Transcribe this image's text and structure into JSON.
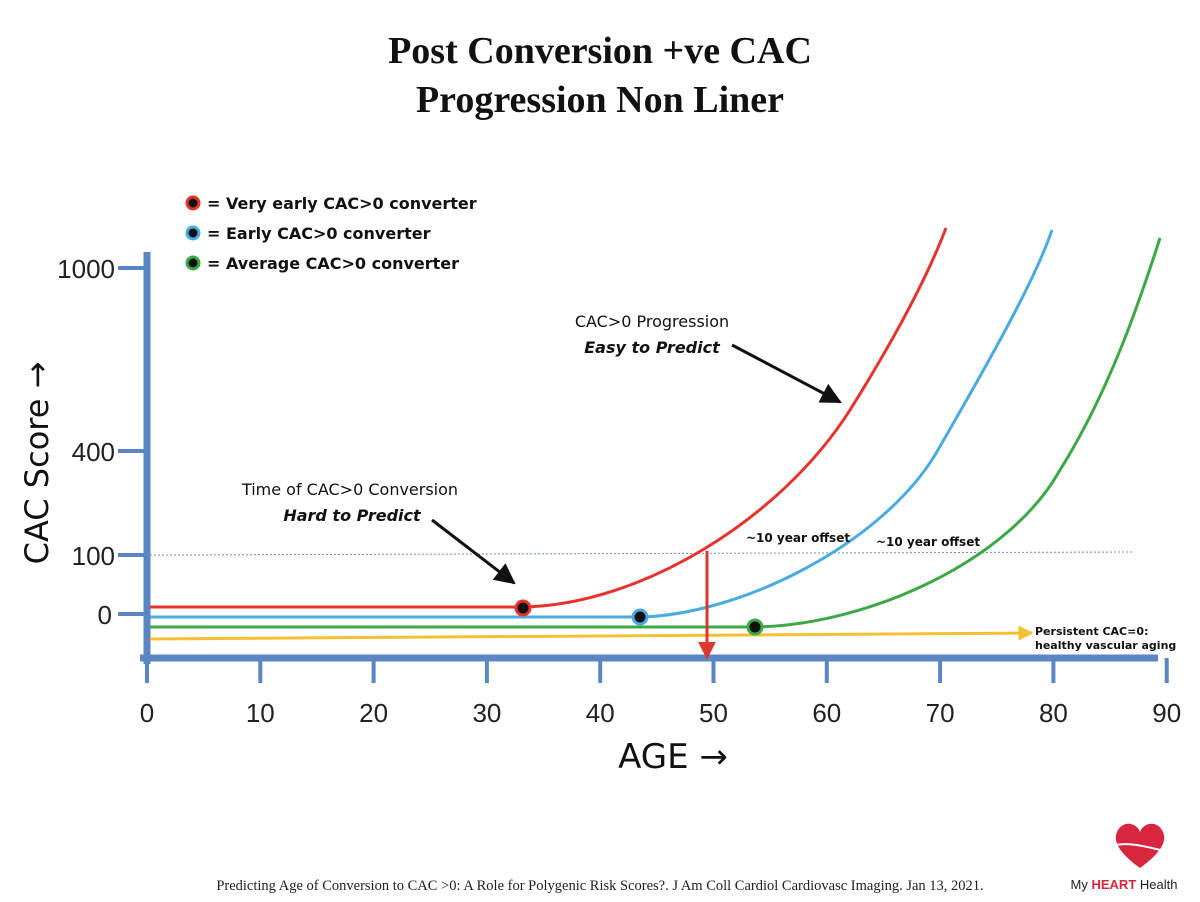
{
  "chart_data": {
    "type": "line",
    "title": "Post Conversion +ve CAC",
    "subtitle": "Progression Non Liner",
    "xlabel": "AGE →",
    "ylabel": "CAC Score →",
    "x_ticks": [
      0,
      10,
      20,
      30,
      40,
      50,
      60,
      70,
      80,
      90
    ],
    "y_ticks": [
      "1000",
      "400",
      "100",
      "0"
    ],
    "xlim": [
      0,
      90
    ],
    "legend": {
      "placement": "top-left",
      "entries": [
        {
          "label": "= Very early CAC>0 converter",
          "color": "#e8332d"
        },
        {
          "label": "= Early CAC>0 converter",
          "color": "#4aabe3"
        },
        {
          "label": "= Average CAC>0 converter",
          "color": "#3da846"
        }
      ]
    },
    "series": [
      {
        "color": "#e8332d",
        "conversion_age": 35,
        "age_at_cac_100": 50,
        "age_at_cac_1000": 72
      },
      {
        "color": "#4aabe3",
        "conversion_age": 45,
        "age_at_cac_100": 60,
        "age_at_cac_1000": 82
      },
      {
        "color": "#3da846",
        "conversion_age": 55,
        "age_at_cac_100": 70,
        "age_at_cac_1000": 91
      },
      {
        "color": "#f4c033",
        "cac": "0 (flat)"
      }
    ],
    "reference_line": {
      "y": "100",
      "style": "dotted",
      "color": "#6b8cc4"
    },
    "marker": {
      "x": 50,
      "color": "#d93a2f"
    },
    "annotations": {
      "progression_title": "CAC>0 Progression",
      "progression_sub": "Easy to Predict",
      "conversion_title": "Time of CAC>0 Conversion",
      "conversion_sub": "Hard to Predict",
      "offset_1": "~10 year offset",
      "offset_2": "~10 year offset",
      "persistent_1": "Persistent CAC=0:",
      "persistent_2": "healthy vascular aging"
    },
    "grid": false,
    "axis_color": "#5b86c4"
  },
  "footer": {
    "citation_plain": "Predicting Age of Conversion to CAC >0: A Role for Polygenic Risk Scores?.",
    "citation_journal": "J Am Coll Cardiol Cardiovasc Imaging. Jan 13, 2021.",
    "logo_text_1": "My ",
    "logo_text_2": "HEART",
    "logo_text_3": " Health",
    "logo_color": "#d7263d"
  }
}
